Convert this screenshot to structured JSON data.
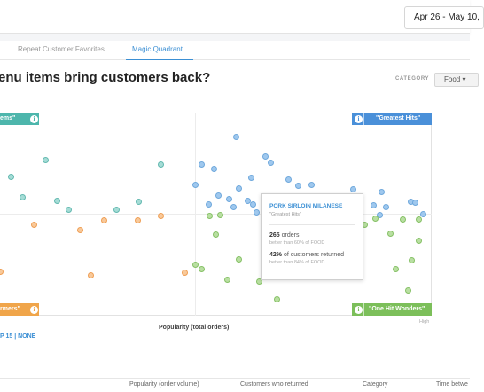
{
  "header": {
    "date_range": "Apr 26 - May 10,"
  },
  "tabs": [
    {
      "label": "Repeat Customer Favorites",
      "active": false
    },
    {
      "label": "Magic Quadrant",
      "active": true
    }
  ],
  "page": {
    "title": "enu items bring customers back?",
    "category_label": "CATEGORY",
    "category_value": "Food ▾"
  },
  "quadrants": {
    "top_left": {
      "label": "ems\"",
      "icon": "info-icon"
    },
    "top_right": {
      "label": "\"Greatest Hits\"",
      "icon": "info-icon"
    },
    "bottom_left": {
      "label": "rmers\"",
      "icon": "info-icon"
    },
    "bottom_right": {
      "label": "\"One Hit Wonders\"",
      "icon": "info-icon"
    }
  },
  "info_glyph": "i",
  "tooltip": {
    "title": "PORK SIRLOIN MILANESE",
    "subtitle": "\"Greatest Hits\"",
    "orders_value": "265",
    "orders_label": " orders",
    "orders_note": "better than 60% of FOOD",
    "returned_value": "42%",
    "returned_label": " of customers returned",
    "returned_note": "better than 84% of FOOD"
  },
  "chart": {
    "x_axis_label": "Popularity (total orders)",
    "x_axis_end": "High",
    "legend_links": "P 15 | NONE"
  },
  "footer_columns": [
    "Popularity (order volume)",
    "Customers who returned",
    "Category",
    "Time betwe"
  ],
  "colors": {
    "greatest_hits": "#4a90d9",
    "hidden_gems": "#4db6ac",
    "underperformers": "#f0a54a",
    "one_hit_wonders": "#7cbf5a",
    "accent": "#3b8fd4"
  }
}
